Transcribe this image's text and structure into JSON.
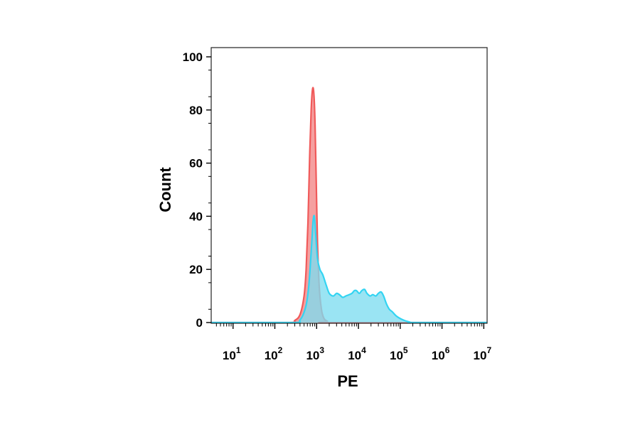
{
  "chart_data": {
    "type": "area",
    "title": "",
    "xlabel": "PE",
    "ylabel": "Count",
    "xscale": "log",
    "xlim": [
      3,
      12000000
    ],
    "ylim": [
      0,
      100
    ],
    "grid": false,
    "legend": "none",
    "y_ticks": [
      0,
      20,
      40,
      60,
      80,
      100
    ],
    "x_ticks": [
      {
        "value": 10,
        "base": "10",
        "exp": "1"
      },
      {
        "value": 100,
        "base": "10",
        "exp": "2"
      },
      {
        "value": 1000,
        "base": "10",
        "exp": "3"
      },
      {
        "value": 10000,
        "base": "10",
        "exp": "4"
      },
      {
        "value": 100000,
        "base": "10",
        "exp": "5"
      },
      {
        "value": 1000000,
        "base": "10",
        "exp": "6"
      },
      {
        "value": 10000000,
        "base": "10",
        "exp": "7"
      }
    ],
    "series": [
      {
        "stroke": "#f05a5a",
        "fill": "#f49b9b",
        "x": [
          3,
          200,
          300,
          400,
          500,
          560,
          620,
          680,
          740,
          800,
          860,
          920,
          980,
          1050,
          1150,
          1300,
          1500,
          1800,
          2200,
          12000000
        ],
        "y": [
          0,
          0,
          0.8,
          3,
          10,
          20,
          38,
          62,
          80,
          88,
          86,
          74,
          52,
          30,
          14,
          5,
          1.5,
          0.5,
          0,
          0
        ]
      },
      {
        "stroke": "#33d4f2",
        "fill": "#7ddcf0",
        "x": [
          3,
          250,
          400,
          550,
          650,
          750,
          820,
          880,
          950,
          1050,
          1200,
          1400,
          1700,
          2000,
          2500,
          3000,
          3500,
          4200,
          5000,
          6000,
          7000,
          8000,
          9000,
          10500,
          12000,
          14000,
          16000,
          19000,
          22000,
          26000,
          30000,
          35000,
          40000,
          47000,
          55000,
          65000,
          80000,
          100000,
          130000,
          170000,
          220000,
          12000000
        ],
        "y": [
          0,
          0,
          1,
          6,
          14,
          28,
          38,
          40,
          33,
          24,
          20,
          18,
          14,
          11,
          10,
          11,
          10.5,
          9.5,
          10,
          10.5,
          11,
          12,
          12,
          11,
          12,
          12.5,
          11,
          10,
          10.5,
          10,
          11,
          11.5,
          10,
          7,
          5,
          4,
          2.5,
          1.5,
          0.7,
          0.2,
          0,
          0
        ]
      }
    ]
  }
}
